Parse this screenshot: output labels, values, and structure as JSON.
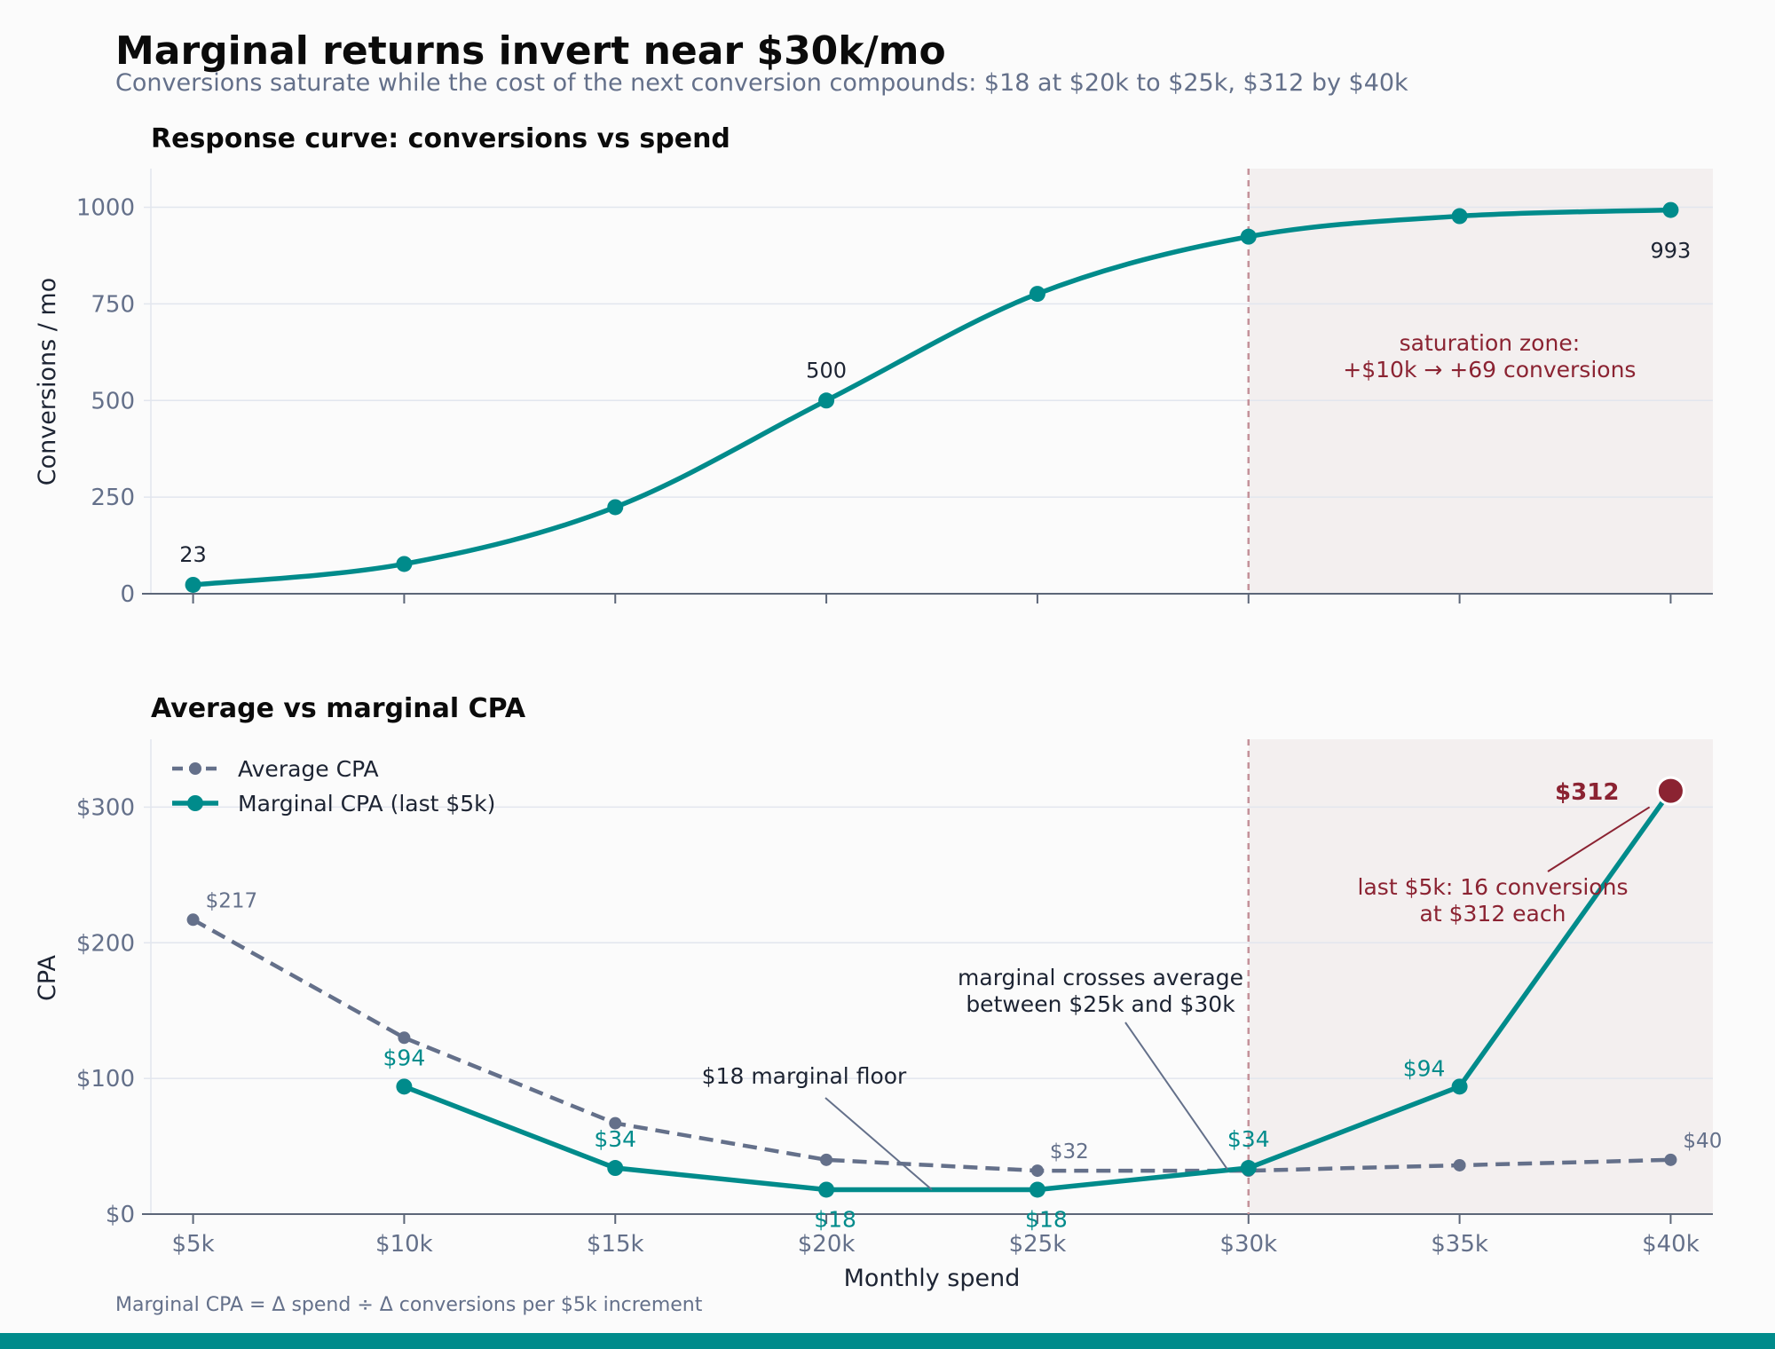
{
  "title": "Marginal returns invert near $30k/mo",
  "subtitle": "Conversions saturate while the cost of the next conversion compounds: $18 at $20k to $25k, $312 by $40k",
  "footnote": "Marginal CPA = Δ spend ÷ Δ conversions per $5k increment",
  "colors": {
    "teal": "#008b8b",
    "slate": "#64708a",
    "maroon": "#8b2332",
    "zone": "#f3efef",
    "grid": "#e2e6ee",
    "axis": "#5c6678",
    "text": "#1d2433"
  },
  "chart_data": [
    {
      "type": "line",
      "title": "Response curve: conversions vs spend",
      "xlabel": "",
      "ylabel": "Conversions / mo",
      "x": [
        5,
        10,
        15,
        20,
        25,
        30,
        35,
        40
      ],
      "x_tick_labels": [
        "$5k",
        "$10k",
        "$15k",
        "$20k",
        "$25k",
        "$30k",
        "$35k",
        "$40k"
      ],
      "ylim": [
        0,
        1100
      ],
      "y_ticks": [
        0,
        250,
        500,
        750,
        1000
      ],
      "y_tick_labels": [
        "0",
        "250",
        "500",
        "750",
        "1000"
      ],
      "grid": true,
      "series": [
        {
          "values": [
            23,
            77,
            224,
            500,
            776,
            924,
            977,
            993
          ]
        }
      ],
      "data_labels": [
        {
          "x": 5,
          "text": "23"
        },
        {
          "x": 20,
          "text": "500"
        },
        {
          "x": 40,
          "text": "993"
        }
      ],
      "shaded_region": {
        "x_start": 30,
        "x_end": 41
      },
      "reference_line_x": 30,
      "annotation": [
        "saturation zone:",
        "+$10k → +69 conversions"
      ]
    },
    {
      "type": "line",
      "title": "Average vs marginal CPA",
      "xlabel": "Monthly spend",
      "ylabel": "CPA",
      "x": [
        5,
        10,
        15,
        20,
        25,
        30,
        35,
        40
      ],
      "x_tick_labels": [
        "$5k",
        "$10k",
        "$15k",
        "$20k",
        "$25k",
        "$30k",
        "$35k",
        "$40k"
      ],
      "ylim": [
        0,
        350
      ],
      "y_ticks": [
        0,
        100,
        200,
        300
      ],
      "y_tick_labels": [
        "$0",
        "$100",
        "$200",
        "$300"
      ],
      "grid": true,
      "legend_position": "top-left",
      "series": [
        {
          "name": "Average CPA",
          "style": "dashed",
          "x": [
            5,
            10,
            15,
            20,
            25,
            30,
            35,
            40
          ],
          "values": [
            217,
            130,
            67,
            40,
            32,
            32,
            36,
            40
          ],
          "labels": [
            {
              "x": 5,
              "text": "$217"
            },
            {
              "x": 25,
              "text": "$32"
            },
            {
              "x": 40,
              "text": "$40"
            }
          ]
        },
        {
          "name": "Marginal CPA (last $5k)",
          "style": "solid",
          "x": [
            10,
            15,
            20,
            25,
            30,
            35,
            40
          ],
          "values": [
            94,
            34,
            18,
            18,
            34,
            94,
            312
          ],
          "labels": [
            {
              "x": 10,
              "text": "$94"
            },
            {
              "x": 15,
              "text": "$34"
            },
            {
              "x": 20,
              "text": "$18"
            },
            {
              "x": 25,
              "text": "$18"
            },
            {
              "x": 30,
              "text": "$34"
            },
            {
              "x": 35,
              "text": "$94"
            },
            {
              "x": 40,
              "text": "$312"
            }
          ]
        }
      ],
      "shaded_region": {
        "x_start": 30,
        "x_end": 41
      },
      "reference_line_x": 30,
      "annotations": [
        {
          "id": "floor",
          "lines": [
            "$18 marginal floor"
          ],
          "target_x": 22.5,
          "target_y": 18
        },
        {
          "id": "cross",
          "lines": [
            "marginal crosses average",
            "between $25k and $30k"
          ],
          "target_x": 29.5,
          "target_y": 33
        },
        {
          "id": "last",
          "lines": [
            "last $5k: 16 conversions",
            "at $312 each"
          ],
          "target_x": 39.5,
          "target_y": 300
        }
      ]
    }
  ]
}
